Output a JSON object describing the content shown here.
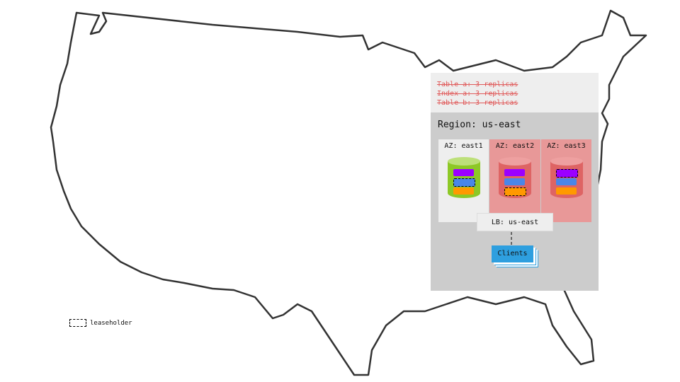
{
  "tables": [
    "Table a: 3 replicas",
    "Index a: 3 replicas",
    "Table b: 3 replicas"
  ],
  "region": {
    "title": "Region: us-east"
  },
  "azs": [
    {
      "label": "AZ: east1",
      "status": "healthy",
      "bg": "#eeeeee",
      "cyl": "#8dc826",
      "cyl_top": "#bde07a",
      "leaseholder": "blue"
    },
    {
      "label": "AZ: east2",
      "status": "failed",
      "bg": "#e89898",
      "cyl": "#de6464",
      "cyl_top": "#eea0a0",
      "leaseholder": "orange"
    },
    {
      "label": "AZ: east3",
      "status": "failed",
      "bg": "#e89898",
      "cyl": "#de6464",
      "cyl_top": "#eea0a0",
      "leaseholder": "purple"
    }
  ],
  "range_colors": {
    "purple": "#9b00ff",
    "blue": "#4a86e8",
    "orange": "#ff9900"
  },
  "lb": {
    "label": "LB: us-east"
  },
  "clients": {
    "label": "Clients"
  },
  "legend": {
    "label": "leaseholder"
  }
}
